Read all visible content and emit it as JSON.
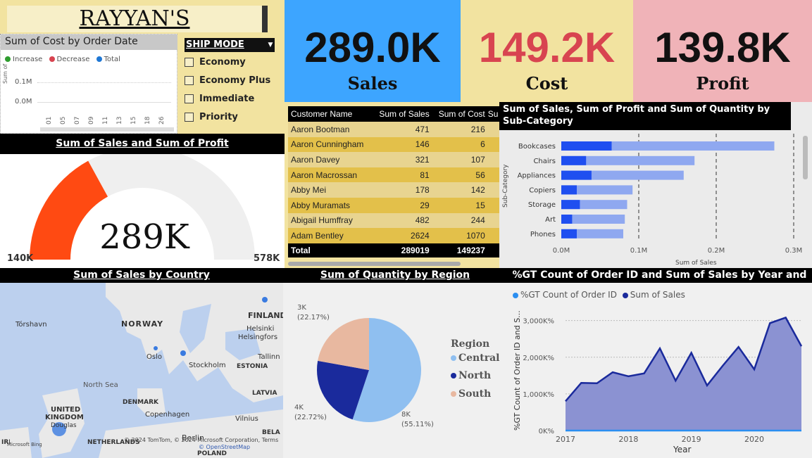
{
  "header": {
    "title": "RAYYAN'S DASHBOARD"
  },
  "kpis": [
    {
      "value": "289.0K",
      "label": "Sales",
      "bg": "#3da5ff",
      "color": "#111111"
    },
    {
      "value": "149.2K",
      "label": "Cost",
      "bg": "#f2e3a0",
      "color": "#d84450"
    },
    {
      "value": "139.8K",
      "label": "Profit",
      "bg": "#f0b3b8",
      "color": "#111111"
    }
  ],
  "cost_chart": {
    "title": "Sum of Cost by Order Date",
    "legend": [
      "Increase",
      "Decrease",
      "Total"
    ],
    "legend_colors": [
      "#2ca02c",
      "#d84450",
      "#1f77d4"
    ],
    "yticks": [
      "0.1M",
      "0.0M"
    ],
    "ylabel": "Sum of ...",
    "xticks": [
      "01",
      "05",
      "07",
      "09",
      "11",
      "13",
      "15",
      "18",
      "26"
    ]
  },
  "ship_mode": {
    "header": "SHIP MODE",
    "options": [
      "Economy",
      "Economy Plus",
      "Immediate",
      "Priority"
    ]
  },
  "gauge": {
    "title": "Sum of Sales and Sum of Profit",
    "value_label": "289K",
    "min_label": "140K",
    "max_label": "578K",
    "value": 289019,
    "min": 139782,
    "max": 578038
  },
  "customer_table": {
    "columns": [
      "Customer Name",
      "Sum of Sales",
      "Sum of Cost",
      "Su"
    ],
    "rows": [
      [
        "Aaron Bootman",
        "471",
        "216"
      ],
      [
        "Aaron Cunningham",
        "146",
        "6"
      ],
      [
        "Aaron Davey",
        "321",
        "107"
      ],
      [
        "Aaron Macrossan",
        "81",
        "56"
      ],
      [
        "Abby Mei",
        "178",
        "142"
      ],
      [
        "Abby Muramats",
        "29",
        "15"
      ],
      [
        "Abigail Humffray",
        "482",
        "244"
      ],
      [
        "Adam Bentley",
        "2624",
        "1070"
      ]
    ],
    "total": [
      "Total",
      "289019",
      "149237"
    ]
  },
  "subcategory_chart": {
    "title": "Sum of Sales, Sum of Profit and Sum of Quantity by Sub-Category",
    "ylabel": "Sub-Category",
    "xlabel": "Sum of Sales",
    "xticks": [
      "0.0M",
      "0.1M",
      "0.2M",
      "0.3M"
    ]
  },
  "chart_data": [
    {
      "type": "bar",
      "title": "Sum of Sales, Sum of Profit and Sum of Quantity by Sub-Category",
      "categories": [
        "Bookcases",
        "Chairs",
        "Appliances",
        "Copiers",
        "Storage",
        "Art",
        "Phones"
      ],
      "series": [
        {
          "values": [
            275000,
            172000,
            158000,
            92000,
            85000,
            82000,
            80000
          ],
          "color": "#8fa8f0"
        },
        {
          "values": [
            65000,
            32000,
            39000,
            20000,
            24000,
            14000,
            20000
          ],
          "color": "#1f4ff0"
        }
      ],
      "xlim": [
        0,
        300000
      ],
      "xlabel": "Sum of Sales",
      "ylabel": "Sub-Category"
    },
    {
      "type": "pie",
      "title": "Sum of Quantity by Region",
      "categories": [
        "Central",
        "North",
        "South"
      ],
      "labels": [
        "8K\n(55.11%)",
        "4K\n(22.72%)",
        "3K\n(22.17%)"
      ],
      "values": [
        55.11,
        22.72,
        22.17
      ],
      "colors": [
        "#8fbff0",
        "#1a2a9c",
        "#e8b8a0"
      ]
    },
    {
      "type": "area",
      "title": "%GT Count of Order ID and Sum of Sales by Year and Quarter",
      "x": [
        2017.0,
        2017.25,
        2017.5,
        2017.75,
        2018.0,
        2018.25,
        2018.5,
        2018.75,
        2019.0,
        2019.25,
        2019.5,
        2019.75,
        2020.0,
        2020.25,
        2020.5,
        2020.75
      ],
      "series": [
        {
          "name": "Sum of Sales",
          "values": [
            800,
            1300,
            1290,
            1590,
            1480,
            1560,
            2240,
            1360,
            2120,
            1230,
            1770,
            2280,
            1670,
            2930,
            3080,
            2300
          ]
        },
        {
          "name": "%GT Count of Order ID",
          "values": [
            0,
            0,
            0,
            0,
            0,
            0,
            0,
            0,
            0,
            0,
            0,
            0,
            0,
            0,
            0,
            0
          ]
        }
      ],
      "xticks": [
        "2017",
        "2018",
        "2019",
        "2020"
      ],
      "yticks": [
        "0K%",
        "1,000K%",
        "2,000K%",
        "3,000K%"
      ],
      "ylim": [
        0,
        3300
      ],
      "xlabel": "Year",
      "ylabel": "%GT Count of Order ID and S..."
    }
  ],
  "map": {
    "title": "Sum of Sales by Country",
    "labels": [
      "Tórshavn",
      "NORWAY",
      "FINLAND",
      "Helsinki",
      "Helsingfors",
      "Oslo",
      "Stockholm",
      "Tallinn",
      "ESTONIA",
      "North Sea",
      "LATVIA",
      "DENMARK",
      "Copenhagen",
      "UNITED",
      "KINGDOM",
      "Douglas",
      "Vilnius",
      "BELA",
      "Berlin",
      "NETHERLANDS",
      "IRELAND",
      "POLAND"
    ],
    "attribution": "© 2024 TomTom, © 2024 Microsoft Corporation, Terms",
    "osm": "© OpenStreetMap",
    "bing": "Microsoft Bing"
  },
  "pie_legend": {
    "title": "Region",
    "items": [
      "Central",
      "North",
      "South"
    ]
  },
  "area_legend": [
    "%GT Count of Order ID",
    "Sum of Sales"
  ],
  "area_colors": [
    "#2b8ef0",
    "#1a2a9c"
  ]
}
